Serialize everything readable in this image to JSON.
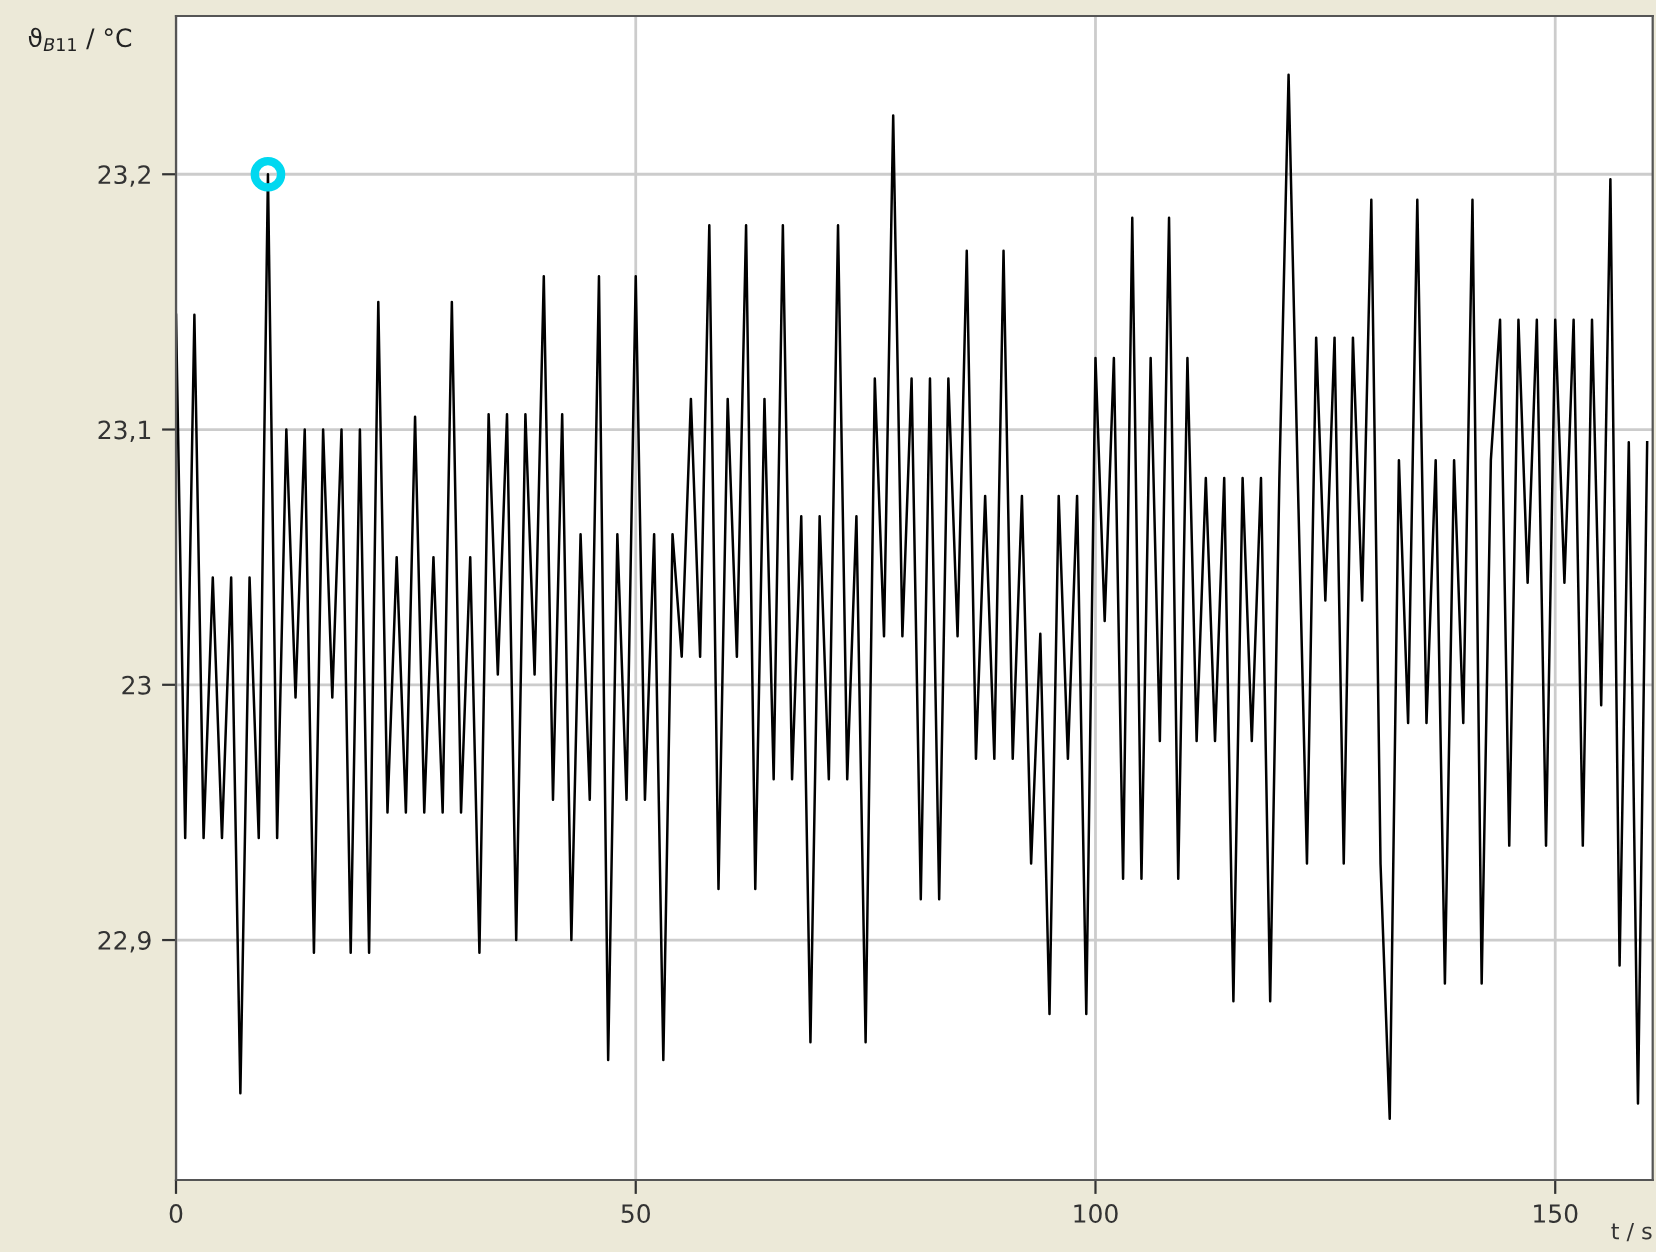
{
  "chart_data": {
    "type": "line",
    "xlabel": "t / s",
    "ylabel": "ϑ$_{B11}$ / °C",
    "xlim": [
      0,
      160.6
    ],
    "ylim": [
      22.806,
      23.262
    ],
    "xticks": [
      0,
      50,
      100,
      150
    ],
    "yticks": [
      {
        "value": 22.9,
        "label": "22,9"
      },
      {
        "value": 23,
        "label": "23"
      },
      {
        "value": 23.1,
        "label": "23,1"
      },
      {
        "value": 23.2,
        "label": "23,2"
      }
    ],
    "grid": true,
    "series": [
      {
        "color": "#000000",
        "x": [
          0,
          1,
          2,
          3,
          4,
          5,
          6,
          7,
          8,
          9,
          10,
          11,
          12,
          13,
          14,
          15,
          16,
          17,
          18,
          19,
          20,
          21,
          22,
          23,
          24,
          25,
          26,
          27,
          28,
          29,
          30,
          31,
          32,
          33,
          34,
          35,
          36,
          37,
          38,
          39,
          40,
          41,
          42,
          43,
          44,
          45,
          46,
          47,
          48,
          49,
          50,
          51,
          52,
          53,
          54,
          55,
          56,
          57,
          58,
          59,
          60,
          61,
          62,
          63,
          64,
          65,
          66,
          67,
          68,
          69,
          70,
          71,
          72,
          73,
          74,
          75,
          76,
          77,
          78,
          79,
          80,
          81,
          82,
          83,
          84,
          85,
          86,
          87,
          88,
          89,
          90,
          91,
          92,
          93,
          94,
          95,
          96,
          97,
          98,
          99,
          100,
          101,
          102,
          103,
          104,
          105,
          106,
          107,
          108,
          109,
          110,
          111,
          112,
          113,
          114,
          115,
          116,
          117,
          118,
          119,
          120,
          121,
          122,
          123,
          124,
          125,
          126,
          127,
          128,
          129,
          130,
          131,
          132,
          133,
          134,
          135,
          136,
          137,
          138,
          139,
          140,
          141,
          142,
          143,
          144,
          145,
          146,
          147,
          148,
          149,
          150,
          151,
          152,
          153,
          154,
          155,
          156,
          157,
          158,
          159,
          160
        ],
        "values": [
          23.145,
          22.94,
          23.145,
          22.94,
          23.042,
          22.94,
          23.042,
          22.84,
          23.042,
          22.94,
          23.2,
          22.94,
          23.1,
          22.995,
          23.1,
          22.895,
          23.1,
          22.995,
          23.1,
          22.895,
          23.1,
          22.895,
          23.15,
          22.95,
          23.05,
          22.95,
          23.105,
          22.95,
          23.05,
          22.95,
          23.15,
          22.95,
          23.05,
          22.895,
          23.106,
          23.004,
          23.106,
          22.9,
          23.106,
          23.004,
          23.16,
          22.955,
          23.106,
          22.9,
          23.059,
          22.955,
          23.16,
          22.853,
          23.059,
          22.955,
          23.16,
          22.955,
          23.059,
          22.853,
          23.059,
          23.011,
          23.112,
          23.011,
          23.18,
          22.92,
          23.112,
          23.011,
          23.18,
          22.92,
          23.112,
          22.963,
          23.18,
          22.963,
          23.066,
          22.86,
          23.066,
          22.963,
          23.18,
          22.963,
          23.066,
          22.86,
          23.12,
          23.019,
          23.223,
          23.019,
          23.12,
          22.916,
          23.12,
          22.916,
          23.12,
          23.019,
          23.17,
          22.971,
          23.074,
          22.971,
          23.17,
          22.971,
          23.074,
          22.93,
          23.02,
          22.871,
          23.074,
          22.971,
          23.074,
          22.871,
          23.128,
          23.025,
          23.128,
          22.924,
          23.183,
          22.924,
          23.128,
          22.978,
          23.183,
          22.924,
          23.128,
          22.978,
          23.081,
          22.978,
          23.081,
          22.876,
          23.081,
          22.978,
          23.081,
          22.876,
          23.081,
          23.239,
          23.081,
          22.93,
          23.136,
          23.033,
          23.136,
          22.93,
          23.136,
          23.033,
          23.19,
          22.93,
          22.83,
          23.088,
          22.985,
          23.19,
          22.985,
          23.088,
          22.883,
          23.088,
          22.985,
          23.19,
          22.883,
          23.088,
          23.143,
          22.937,
          23.143,
          23.04,
          23.143,
          22.937,
          23.143,
          23.04,
          23.143,
          22.937,
          23.143,
          22.992,
          23.198,
          22.89,
          23.095,
          22.836,
          23.095
        ]
      },
      {
        "type": "scatter",
        "color": "#00d8f0",
        "marker": "circle",
        "x": [
          10
        ],
        "values": [
          23.2
        ]
      }
    ]
  }
}
